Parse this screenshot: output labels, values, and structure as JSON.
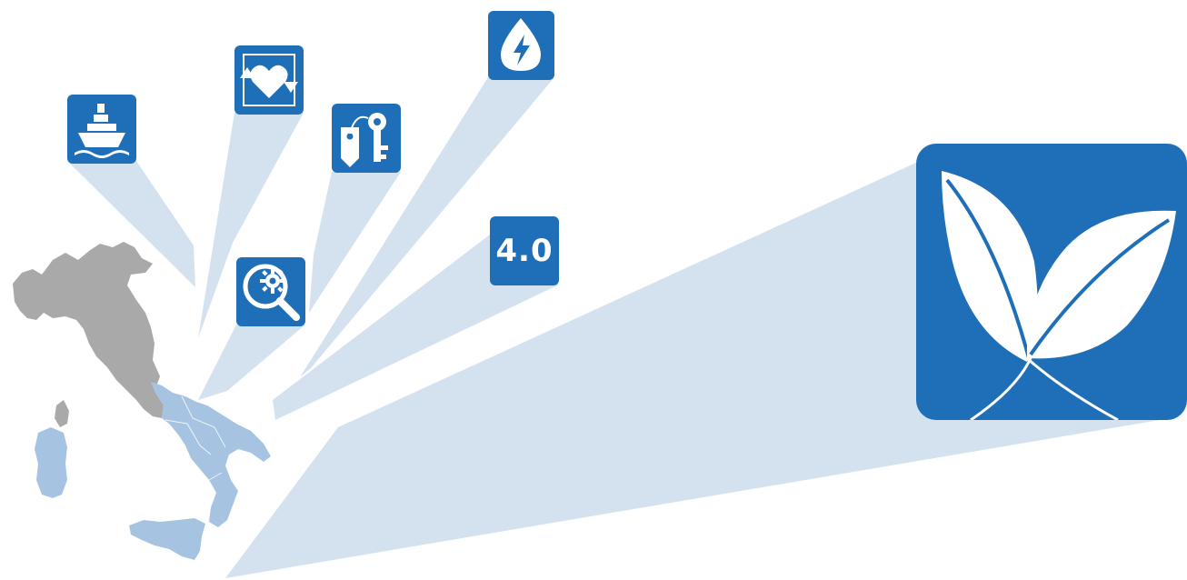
{
  "colors": {
    "tile": "#1f6fb8",
    "beam": "#d4e2f0",
    "region_gray": "#a9a9a9",
    "region_highlight": "#a6c4e2"
  },
  "map": {
    "icon": "italy-map-icon"
  },
  "icons": [
    {
      "name": "ship-icon"
    },
    {
      "name": "heart-exchange-icon"
    },
    {
      "name": "key-tag-icon"
    },
    {
      "name": "energy-drop-icon"
    },
    {
      "name": "magnifier-gear-icon"
    },
    {
      "name": "industry-4-0-icon",
      "label": "4.0"
    },
    {
      "name": "leaves-icon"
    }
  ]
}
